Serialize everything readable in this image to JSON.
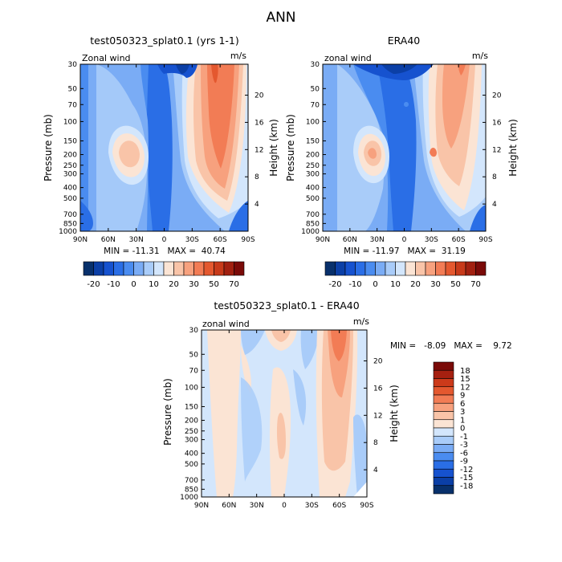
{
  "page_title": "ANN",
  "chart_data": [
    {
      "type": "heatmap",
      "title": "test050323_splat0.1 (yrs 1-1)",
      "left_label": "Zonal wind",
      "right_label": "m/s",
      "ylabel": "Pressure (mb)",
      "ylabel2": "Height (km)",
      "x_ticks": [
        "90N",
        "60N",
        "30N",
        "0",
        "30S",
        "60S",
        "90S"
      ],
      "y_ticks": [
        "30",
        "50",
        "70",
        "100",
        "150",
        "200",
        "250",
        "300",
        "400",
        "500",
        "700",
        "850",
        "1000"
      ],
      "height_ticks": [
        "4",
        "8",
        "12",
        "16",
        "20"
      ],
      "stats": "MIN = -11.31   MAX =  40.74",
      "y_scale": "log pressure (reversed)",
      "features": [
        {
          "lat": -62,
          "p": 30,
          "value": 35
        },
        {
          "lat": -55,
          "p": 150,
          "value": 30
        },
        {
          "lat": 33,
          "p": 200,
          "value": 20
        },
        {
          "lat": 2,
          "p": 40,
          "value": -10
        }
      ]
    },
    {
      "type": "heatmap",
      "title": "ERA40",
      "left_label": "zonal wind",
      "right_label": "m/s",
      "ylabel": "Pressure (mb)",
      "ylabel2": "Height (km)",
      "x_ticks": [
        "90N",
        "60N",
        "30N",
        "0",
        "30S",
        "60S",
        "90S"
      ],
      "y_ticks": [
        "30",
        "50",
        "70",
        "100",
        "150",
        "200",
        "250",
        "300",
        "400",
        "500",
        "700",
        "850",
        "1000"
      ],
      "height_ticks": [
        "4",
        "8",
        "12",
        "16",
        "20"
      ],
      "stats": "MIN = -11.97   MAX =  31.19",
      "y_scale": "log pressure (reversed)",
      "features": [
        {
          "lat": -64,
          "p": 30,
          "value": 30
        },
        {
          "lat": -40,
          "p": 190,
          "value": 28
        },
        {
          "lat": 36,
          "p": 200,
          "value": 22
        },
        {
          "lat": 5,
          "p": 40,
          "value": -11
        }
      ]
    },
    {
      "type": "heatmap",
      "title": "test050323_splat0.1 - ERA40",
      "left_label": "zonal wind",
      "right_label": "m/s",
      "ylabel": "Pressure (mb)",
      "ylabel2": "Height (km)",
      "x_ticks": [
        "90N",
        "60N",
        "30N",
        "0",
        "30S",
        "60S",
        "90S"
      ],
      "y_ticks": [
        "30",
        "50",
        "70",
        "100",
        "150",
        "200",
        "250",
        "300",
        "400",
        "500",
        "700",
        "850",
        "1000"
      ],
      "height_ticks": [
        "4",
        "8",
        "12",
        "16",
        "20"
      ],
      "stats": "MIN =   -8.09   MAX =    9.72",
      "y_scale": "log pressure (reversed)",
      "features": [
        {
          "lat": -60,
          "p": 50,
          "value": 9
        },
        {
          "lat": 5,
          "p": 40,
          "value": 3
        },
        {
          "lat": -60,
          "p": 400,
          "value": 3
        },
        {
          "lat": 60,
          "p": 300,
          "value": 2
        },
        {
          "lat": 40,
          "p": 100,
          "value": -3
        },
        {
          "lat": -30,
          "p": 70,
          "value": -3
        }
      ]
    }
  ],
  "colorbar_top": {
    "labels": [
      "-20",
      "-10",
      "0",
      "10",
      "20",
      "30",
      "50",
      "70"
    ],
    "colors": [
      "#08306b",
      "#0b3fa6",
      "#1652cf",
      "#2a6ee6",
      "#4a8cf0",
      "#7aacf5",
      "#a9ccf9",
      "#d3e6fc",
      "#fbe4d4",
      "#f9c4a8",
      "#f7a17e",
      "#f27c55",
      "#e4582f",
      "#c73a1a",
      "#a12010",
      "#7a0a08"
    ]
  },
  "colorbar_diff": {
    "labels": [
      "18",
      "15",
      "12",
      "9",
      "6",
      "3",
      "1",
      "0",
      "-1",
      "-3",
      "-6",
      "-9",
      "-12",
      "-15",
      "-18"
    ],
    "colors": [
      "#7a0a08",
      "#a62010",
      "#cc3a1a",
      "#e4582f",
      "#f27c55",
      "#f7a17e",
      "#f9c4a8",
      "#fbe4d4",
      "#d3e6fc",
      "#a9ccf9",
      "#7aacf5",
      "#4a8cf0",
      "#2a6ee6",
      "#1652cf",
      "#0b3fa6",
      "#08306b"
    ]
  }
}
